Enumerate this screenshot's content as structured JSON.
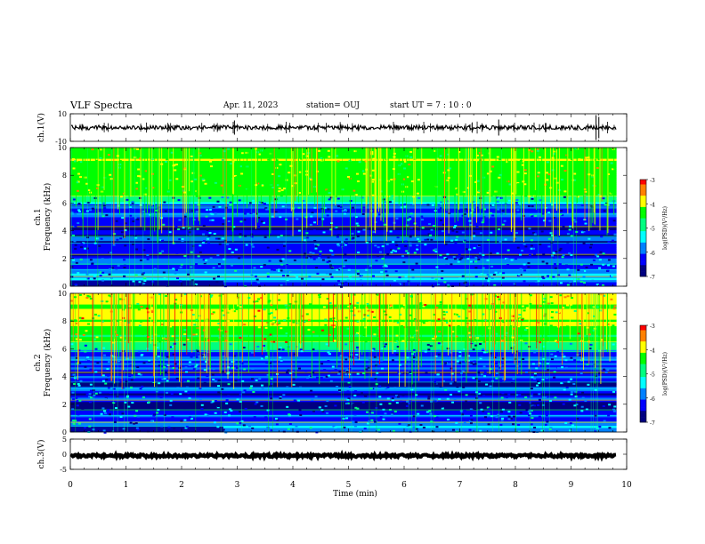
{
  "header": {
    "title": "VLF Spectra",
    "date": "Apr. 11, 2023",
    "station": "station= OUJ",
    "start": "start UT =   7 : 10 : 0"
  },
  "chart_data": [
    {
      "type": "line",
      "ylabel": "ch.1(V)",
      "x_range": [
        0,
        10
      ],
      "ylim": [
        -10,
        10
      ],
      "y_ticks": [
        "10",
        "-10"
      ],
      "baseline": 0,
      "trace_color": "#000000"
    },
    {
      "type": "heatmap",
      "ylabel_lines": [
        "ch.1",
        "Frequency (kHz)"
      ],
      "x_range": [
        0,
        10
      ],
      "ylim": [
        0,
        10
      ],
      "y_ticks": [
        "0",
        "2",
        "4",
        "6",
        "8",
        "10"
      ],
      "data_end_min": 9.82,
      "colorbar": {
        "label": "log(PSD)(V²/Hz)",
        "range": [
          -7,
          -3
        ],
        "ticks": [
          "-3",
          "-4",
          "-5",
          "-6",
          "-7"
        ]
      }
    },
    {
      "type": "heatmap",
      "ylabel_lines": [
        "ch.2",
        "Frequency (kHz)"
      ],
      "x_range": [
        0,
        10
      ],
      "ylim": [
        0,
        10
      ],
      "y_ticks": [
        "0",
        "2",
        "4",
        "6",
        "8",
        "10"
      ],
      "data_end_min": 9.82,
      "colorbar": {
        "label": "log(PSD)(V²/Hz)",
        "range": [
          -7,
          -3
        ],
        "ticks": [
          "-3",
          "-4",
          "-5",
          "-6",
          "-7"
        ]
      }
    },
    {
      "type": "line",
      "ylabel": "ch.3(V)",
      "x_range": [
        0,
        10
      ],
      "ylim": [
        -5,
        5
      ],
      "y_ticks": [
        "5",
        "0",
        "-5"
      ],
      "baseline": -0.5,
      "trace_color": "#000000"
    }
  ],
  "xaxis": {
    "label": "Time (min)",
    "ticks": [
      "0",
      "1",
      "2",
      "3",
      "4",
      "5",
      "6",
      "7",
      "8",
      "9",
      "10"
    ]
  },
  "colormap": [
    "#000080",
    "#0000ff",
    "#0080ff",
    "#00ffff",
    "#00ff80",
    "#00ff00",
    "#ffff00",
    "#ff8000",
    "#ff0000",
    "#ffffff"
  ]
}
